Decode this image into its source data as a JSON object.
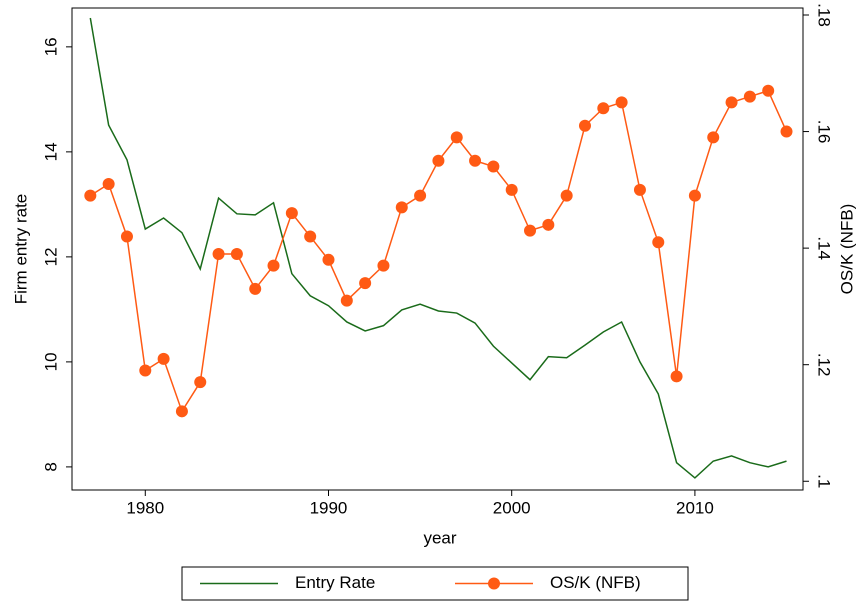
{
  "chart_data": {
    "type": "line",
    "xlabel": "year",
    "ylabel": "Firm entry rate",
    "y2label": "OS/K (NFB)",
    "x": [
      1977,
      1978,
      1979,
      1980,
      1981,
      1982,
      1983,
      1984,
      1985,
      1986,
      1987,
      1988,
      1989,
      1990,
      1991,
      1992,
      1993,
      1994,
      1995,
      1996,
      1997,
      1998,
      1999,
      2000,
      2001,
      2002,
      2003,
      2004,
      2005,
      2006,
      2007,
      2008,
      2009,
      2010,
      2011,
      2012,
      2013,
      2014,
      2015
    ],
    "series": [
      {
        "name": "Entry Rate",
        "color": "#1a6b1a",
        "markers": false,
        "values": [
          16.55,
          14.51,
          13.85,
          12.53,
          12.74,
          12.46,
          11.77,
          13.12,
          12.82,
          12.8,
          13.03,
          11.68,
          11.26,
          11.07,
          10.76,
          10.59,
          10.69,
          10.99,
          11.1,
          10.97,
          10.93,
          10.74,
          10.3,
          9.98,
          9.66,
          10.1,
          10.08,
          10.32,
          10.57,
          10.76,
          10.0,
          9.39,
          8.08,
          7.79,
          8.11,
          8.21,
          8.08,
          8.0,
          8.11
        ]
      },
      {
        "name": "OS/K (NFB)",
        "color": "#ff5a14",
        "markers": true,
        "axis": "y2",
        "values": [
          0.149,
          0.151,
          0.142,
          0.119,
          0.121,
          0.112,
          0.117,
          0.139,
          0.139,
          0.133,
          0.137,
          0.146,
          0.142,
          0.138,
          0.131,
          0.134,
          0.137,
          0.147,
          0.149,
          0.155,
          0.159,
          0.155,
          0.154,
          0.15,
          0.143,
          0.144,
          0.149,
          0.161,
          0.164,
          0.165,
          0.15,
          0.141,
          0.118,
          0.149,
          0.159,
          0.165,
          0.166,
          0.167,
          0.16
        ]
      }
    ],
    "xlim": [
      1976,
      2015.9
    ],
    "xticks": [
      1980,
      1990,
      2000,
      2010
    ],
    "ylim": [
      7.56,
      16.74
    ],
    "yticks": [
      8,
      10,
      12,
      14,
      16
    ],
    "y2lim": [
      0.0985,
      0.1812
    ],
    "y2ticks": [
      {
        "value": 0.1,
        "label": ".1"
      },
      {
        "value": 0.12,
        "label": ".12"
      },
      {
        "value": 0.14,
        "label": ".14"
      },
      {
        "value": 0.16,
        "label": ".16"
      },
      {
        "value": 0.18,
        "label": ".18"
      }
    ],
    "grid": false,
    "legend": "bottom"
  }
}
